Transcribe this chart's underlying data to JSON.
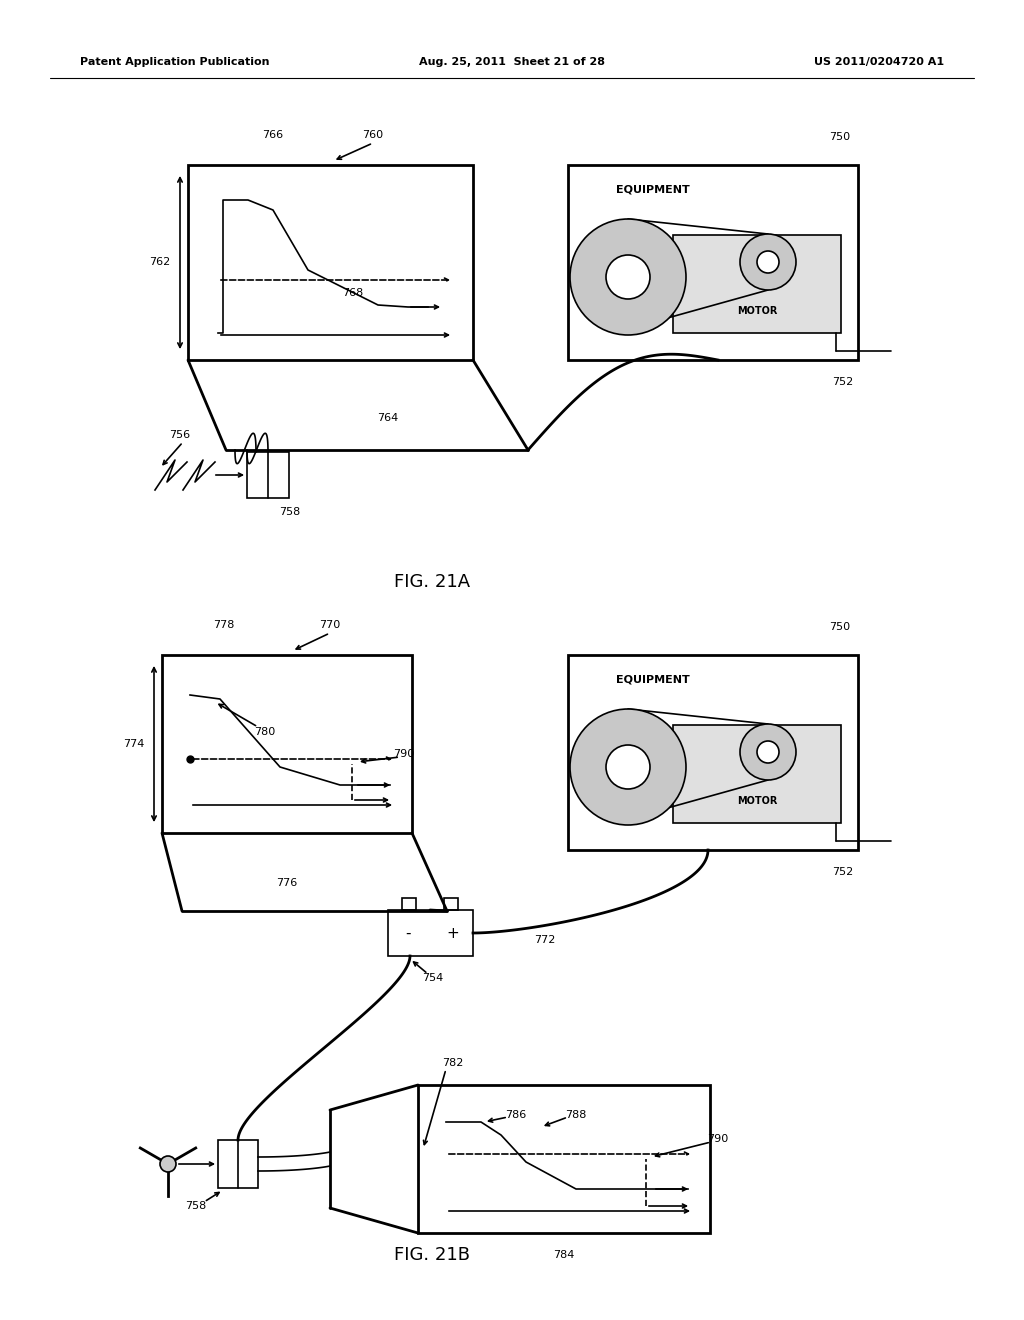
{
  "bg_color": "#ffffff",
  "header_left": "Patent Application Publication",
  "header_mid": "Aug. 25, 2011  Sheet 21 of 28",
  "header_right": "US 2011/0204720 A1",
  "fig21a_label": "FIG. 21A",
  "fig21b_label": "FIG. 21B"
}
